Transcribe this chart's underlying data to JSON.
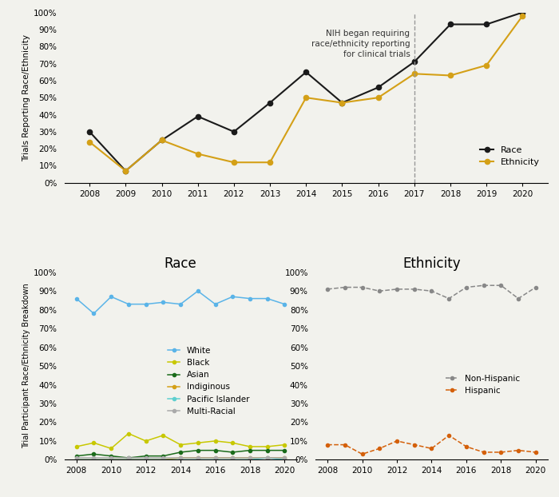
{
  "top_years": [
    2008,
    2009,
    2010,
    2011,
    2012,
    2013,
    2014,
    2015,
    2016,
    2017,
    2018,
    2019,
    2020
  ],
  "race_reporting": [
    30,
    7,
    25,
    39,
    30,
    47,
    65,
    47,
    56,
    71,
    93,
    93,
    100
  ],
  "ethnicity_reporting": [
    24,
    7,
    25,
    17,
    12,
    12,
    50,
    47,
    50,
    64,
    63,
    69,
    98
  ],
  "annotation_year": 2017,
  "annotation_text": "NIH began requiring\nrace/ethnicity reporting\nfor clinical trials",
  "bottom_years": [
    2008,
    2009,
    2010,
    2011,
    2012,
    2013,
    2014,
    2015,
    2016,
    2017,
    2018,
    2019,
    2020
  ],
  "white": [
    86,
    78,
    87,
    83,
    83,
    84,
    83,
    90,
    83,
    87,
    86,
    86,
    83
  ],
  "black": [
    7,
    9,
    6,
    14,
    10,
    13,
    8,
    9,
    10,
    9,
    7,
    7,
    8
  ],
  "asian": [
    2,
    3,
    2,
    1,
    2,
    2,
    4,
    5,
    5,
    4,
    5,
    5,
    5
  ],
  "indigenous": [
    0,
    0,
    0,
    0,
    0,
    0,
    1,
    1,
    1,
    1,
    1,
    1,
    1
  ],
  "pacific_islander": [
    0,
    0,
    0,
    0,
    0,
    0,
    0,
    0,
    0,
    0,
    0,
    1,
    0
  ],
  "multiracial": [
    1,
    1,
    1,
    1,
    1,
    1,
    1,
    1,
    1,
    1,
    1,
    1,
    1
  ],
  "non_hispanic": [
    91,
    92,
    92,
    90,
    91,
    91,
    90,
    86,
    92,
    93,
    93,
    86,
    92
  ],
  "hispanic": [
    8,
    8,
    3,
    6,
    10,
    8,
    6,
    13,
    7,
    4,
    4,
    5,
    4
  ],
  "top_ylabel": "Trials Reporting Race/Ethnicity",
  "bottom_ylabel": "Trial Participant Race/Ethnicity Breakdown",
  "race_title": "Race",
  "ethnicity_title": "Ethnicity",
  "color_race": "#1a1a1a",
  "color_ethnicity": "#d4a017",
  "color_white": "#5ab4e8",
  "color_black": "#c8c800",
  "color_asian": "#1a6b1a",
  "color_indigenous": "#d4a017",
  "color_pacific_islander": "#5ecfcf",
  "color_multiracial": "#aaaaaa",
  "color_non_hispanic": "#888888",
  "color_hispanic": "#d4600a",
  "background_color": "#f2f2ed"
}
